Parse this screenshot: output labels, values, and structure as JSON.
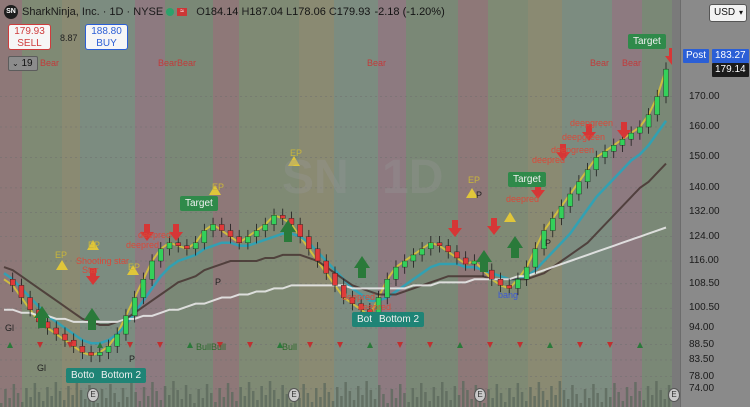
{
  "header": {
    "logo_text": "SN",
    "title": "SharkNinja, Inc. · 1D · NYSE",
    "open_label": "O",
    "open": "184.14",
    "high_label": "H",
    "high": "187.04",
    "low_label": "L",
    "low": "178.06",
    "close_label": "C",
    "close": "179.93",
    "change": "-2.18 (-1.20%)"
  },
  "trade": {
    "sell_price": "179.93",
    "sell_label": "SELL",
    "spread": "8.87",
    "buy_price": "188.80",
    "buy_label": "BUY"
  },
  "indicator_toggle": {
    "count": "19",
    "icon": "chevron-down-icon"
  },
  "currency": {
    "selected": "USD"
  },
  "watermark": {
    "symbol": "SN",
    "interval": "1D"
  },
  "axis": {
    "ticks": [
      "170.00",
      "160.00",
      "150.00",
      "140.00",
      "132.00",
      "124.00",
      "116.00",
      "108.50",
      "100.50",
      "94.00",
      "88.50",
      "83.50",
      "78.00",
      "74.00"
    ]
  },
  "price_tags": {
    "post_label": "Post",
    "post_price": "183.27",
    "last_price": "179.14"
  },
  "annotations": {
    "bear": "Bear",
    "bearbear": "BearBear",
    "target": "Target",
    "bottom": "Bottom 2",
    "bottom_short": "Bot",
    "bottom_short2": "Botto",
    "ep": "EP",
    "shooting_star": "Shooting star",
    "shooting_star2": "Star",
    "deepred": "deepred",
    "deepgreen": "deepgreen",
    "bull": "Bull",
    "bullbull": "BullBull",
    "gl": "Gl",
    "p": "P",
    "bang": "bang"
  },
  "colors": {
    "bull_candle": "#34d05a",
    "bear_candle": "#e03a3a",
    "target_bg": "#2f8a4a",
    "bottom_bg": "#1f8476",
    "post_tag": "#2b5fd6",
    "last_tag": "#1b1b1b"
  },
  "chart_data": {
    "type": "line",
    "title": "",
    "xlabel": "",
    "ylabel": "",
    "ylim": [
      72,
      182
    ],
    "series": [
      {
        "values": [
          110,
          108,
          104,
          100,
          96,
          94,
          92,
          90,
          88,
          86,
          85,
          86,
          88,
          92,
          98,
          104,
          110,
          116,
          120,
          122,
          121,
          120,
          122,
          126,
          128,
          126,
          124,
          122,
          124,
          126,
          128,
          131,
          130,
          128,
          124,
          120,
          116,
          112,
          108,
          104,
          102,
          100,
          98,
          104,
          110,
          114,
          116,
          118,
          120,
          122,
          121,
          119,
          117,
          115,
          116,
          113,
          110,
          108,
          107,
          110,
          114,
          120,
          126,
          130,
          134,
          138,
          142,
          146,
          150,
          152,
          154,
          156,
          158,
          160,
          164,
          170,
          179
        ]
      },
      {
        "values": [
          112,
          110,
          107,
          104,
          101,
          98,
          96,
          94,
          92,
          90,
          89,
          89,
          90,
          92,
          95,
          99,
          103,
          107,
          111,
          114,
          116,
          117,
          118,
          120,
          121,
          122,
          122,
          121,
          121,
          122,
          123,
          124,
          125,
          125,
          124,
          122,
          119,
          116,
          113,
          110,
          107,
          105,
          103,
          103,
          104,
          106,
          108,
          110,
          112,
          114,
          115,
          115,
          115,
          114,
          114,
          113,
          112,
          111,
          110,
          110,
          111,
          113,
          116,
          119,
          122,
          125,
          129,
          133,
          137,
          140,
          143,
          146,
          149,
          151,
          154,
          158,
          162
        ]
      },
      {
        "values": [
          114,
          113,
          111,
          109,
          107,
          105,
          103,
          101,
          99,
          97,
          96,
          95,
          95,
          96,
          97,
          99,
          101,
          103,
          105,
          107,
          109,
          110,
          111,
          113,
          114,
          115,
          116,
          116,
          116,
          116,
          117,
          117,
          118,
          118,
          118,
          117,
          116,
          114,
          112,
          110,
          108,
          107,
          106,
          105,
          105,
          105,
          106,
          107,
          108,
          109,
          110,
          111,
          111,
          111,
          111,
          111,
          110,
          110,
          110,
          110,
          110,
          111,
          112,
          114,
          116,
          118,
          120,
          122,
          125,
          128,
          131,
          134,
          137,
          140,
          142,
          145,
          148
        ]
      },
      {
        "values": [
          100,
          100,
          99,
          99,
          98,
          98,
          97,
          97,
          96,
          96,
          96,
          96,
          96,
          96,
          97,
          97,
          98,
          98,
          99,
          100,
          100,
          101,
          102,
          102,
          103,
          104,
          104,
          105,
          105,
          106,
          106,
          107,
          107,
          108,
          108,
          108,
          108,
          108,
          108,
          108,
          107,
          107,
          107,
          107,
          107,
          107,
          107,
          108,
          108,
          108,
          109,
          109,
          109,
          109,
          110,
          110,
          110,
          110,
          110,
          111,
          111,
          112,
          113,
          114,
          115,
          116,
          117,
          118,
          119,
          120,
          121,
          122,
          123,
          124,
          125,
          126,
          127
        ]
      }
    ]
  }
}
